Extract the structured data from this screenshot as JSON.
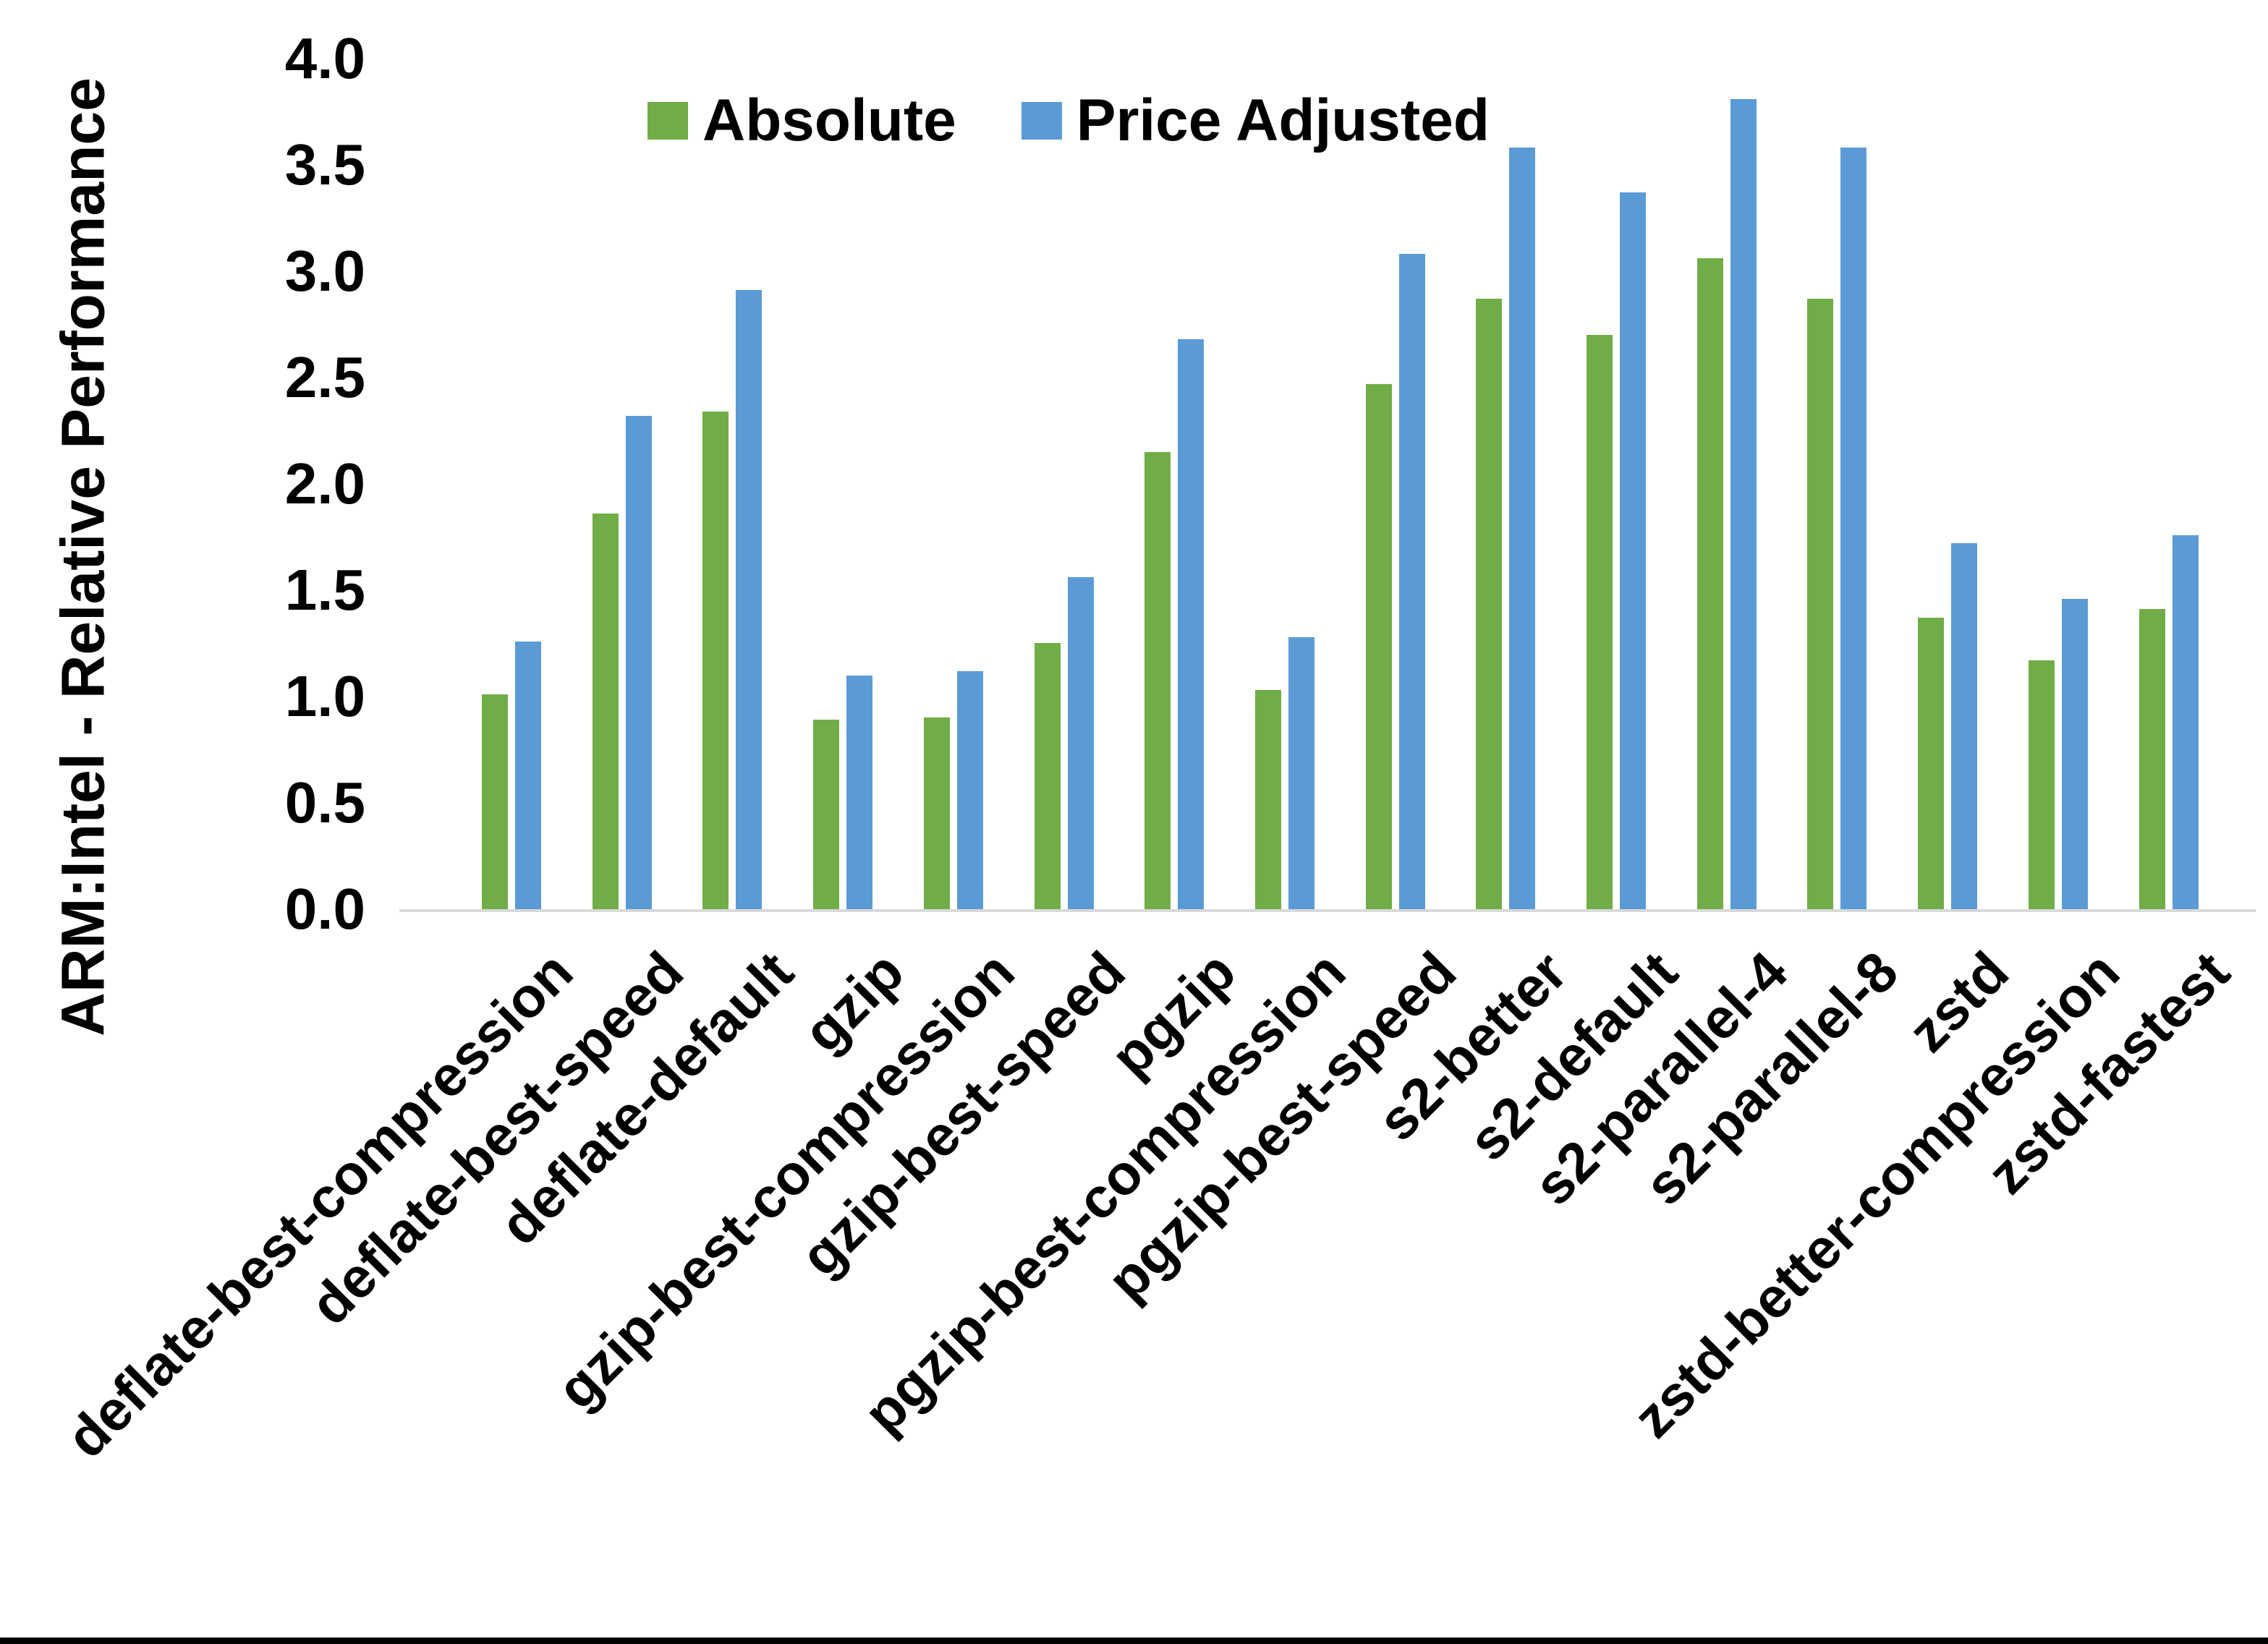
{
  "chart_data": {
    "type": "bar",
    "title": "",
    "xlabel": "",
    "ylabel": "ARM:Intel - Relative Performance",
    "ylim": [
      0.0,
      4.0
    ],
    "ytick_step": 0.5,
    "ytick_labels": [
      "0.0",
      "0.5",
      "1.0",
      "1.5",
      "2.0",
      "2.5",
      "3.0",
      "3.5",
      "4.0"
    ],
    "grid": false,
    "legend_position": "top-center",
    "categories": [
      "deflate-best-compression",
      "deflate-best-speed",
      "deflate-default",
      "gzip",
      "gzip-best-compression",
      "gzip-best-speed",
      "pgzip",
      "pgzip-best-compression",
      "pgzip-best-speed",
      "s2-better",
      "s2-default",
      "s2-parallel-4",
      "s2-parallel-8",
      "zstd",
      "zstd-better-compression",
      "zstd-fastest"
    ],
    "series": [
      {
        "name": "Absolute",
        "color": "#70ad47",
        "values": [
          1.01,
          1.86,
          2.34,
          0.89,
          0.9,
          1.25,
          2.15,
          1.03,
          2.47,
          2.87,
          2.7,
          3.06,
          2.87,
          1.37,
          1.17,
          1.41
        ]
      },
      {
        "name": "Price Adjusted",
        "color": "#5b9bd5",
        "values": [
          1.26,
          2.32,
          2.91,
          1.1,
          1.12,
          1.56,
          2.68,
          1.28,
          3.08,
          3.58,
          3.37,
          3.81,
          3.58,
          1.72,
          1.46,
          1.76
        ]
      }
    ],
    "axis_line_color": "#d9d9d9",
    "text_color": "#000000"
  }
}
